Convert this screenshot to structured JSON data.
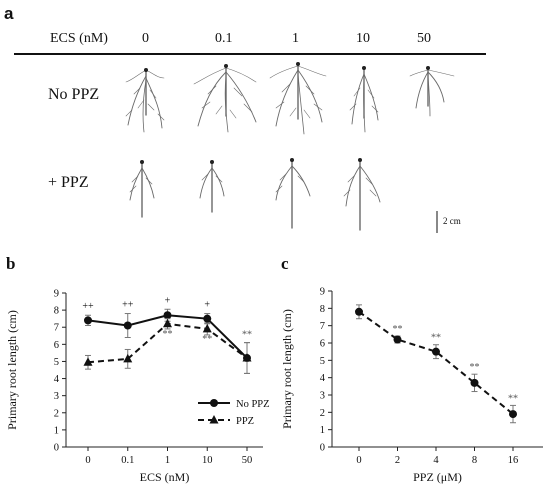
{
  "panel_a": {
    "letter": "a",
    "header_label": "ECS (nM)",
    "conc_labels": [
      "0",
      "0.1",
      "1",
      "10",
      "50"
    ],
    "row_labels": [
      "No PPZ",
      "+ PPZ"
    ],
    "scale_bar_label": "2 cm"
  },
  "chart_data": [
    {
      "panel": "b",
      "type": "line",
      "categories": [
        "0",
        "0.1",
        "1",
        "10",
        "50"
      ],
      "xlabel": "ECS (nM)",
      "ylabel": "Primary root length (cm)",
      "ylim": [
        0,
        9
      ],
      "yticks": [
        "0",
        "1",
        "2",
        "3",
        "4",
        "5",
        "6",
        "7",
        "8",
        "9"
      ],
      "series": [
        {
          "name": "No PPZ",
          "values": [
            7.4,
            7.1,
            7.7,
            7.5,
            5.2
          ],
          "err": [
            0.3,
            0.7,
            0.35,
            0.3,
            0.9
          ],
          "marker": "circle",
          "dash": "solid"
        },
        {
          "name": "PPZ",
          "values": [
            4.95,
            5.15,
            7.2,
            6.9,
            5.2
          ],
          "err": [
            0.4,
            0.55,
            0.3,
            0.35,
            0.9
          ],
          "marker": "triangle",
          "dash": "dashed"
        }
      ],
      "annotations_top": [
        "++",
        "++",
        "+",
        "+",
        ""
      ],
      "annotations_star": [
        "",
        "",
        "**",
        "**",
        "**"
      ],
      "legend_position": "bottom-right"
    },
    {
      "panel": "c",
      "type": "line",
      "categories": [
        "0",
        "2",
        "4",
        "8",
        "16"
      ],
      "xlabel": "PPZ (μM)",
      "ylabel": "Primary root length (cm)",
      "ylim": [
        0,
        9
      ],
      "yticks": [
        "0",
        "1",
        "2",
        "3",
        "4",
        "5",
        "6",
        "7",
        "8",
        "9"
      ],
      "series": [
        {
          "values": [
            7.8,
            6.2,
            5.5,
            3.7,
            1.9
          ],
          "err": [
            0.4,
            0.2,
            0.4,
            0.5,
            0.5
          ],
          "marker": "circle",
          "dash": "dashed"
        }
      ],
      "annotations_star": [
        "",
        "**",
        "**",
        "**",
        "**"
      ]
    }
  ]
}
